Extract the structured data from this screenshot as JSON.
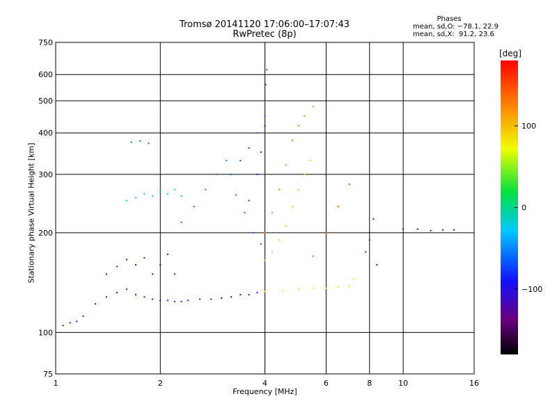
{
  "header": {
    "title_line1": "Tromsø 20141120 17:06:00–17:07:43",
    "title_line2": "RwPretec (8p)",
    "phases_heading": "Phases",
    "phases_o": "mean, sd,O: −78.1, 22.9",
    "phases_x": "mean, sd,X:  91.2, 23.6"
  },
  "colorbar": {
    "unit": "[deg]",
    "ticks": [
      {
        "label": "100",
        "value": 100
      },
      {
        "label": "0",
        "value": 0
      },
      {
        "label": "−100",
        "value": -100
      }
    ],
    "range": [
      -180,
      180
    ]
  },
  "colors": {
    "ochre_trace": "#e8a000",
    "yellow_trace": "#e6e600",
    "lime_trace": "#b8f000",
    "blue_trace": "#1c1cff",
    "cyan_trace": "#14b4e6",
    "navy_trace": "#1010b0"
  },
  "chart_data": {
    "type": "scatter",
    "title": "Tromsø 20141120 17:06:00–17:07:43",
    "subtitle": "RwPretec (8p)",
    "xlabel": "Frequency [MHz]",
    "ylabel": "Stationary phase Virtual Height [km]",
    "xscale": "log",
    "yscale": "log",
    "xlim": [
      1,
      16
    ],
    "ylim": [
      75,
      750
    ],
    "x_ticks": [
      {
        "label": "1",
        "value": 1
      },
      {
        "label": "2",
        "value": 2
      },
      {
        "label": "4",
        "value": 4
      },
      {
        "label": "6",
        "value": 6
      },
      {
        "label": "8",
        "value": 8
      },
      {
        "label": "10",
        "value": 10
      },
      {
        "label": "16",
        "value": 16
      }
    ],
    "y_ticks": [
      {
        "label": "75",
        "value": 75
      },
      {
        "label": "100",
        "value": 100
      },
      {
        "label": "200",
        "value": 200
      },
      {
        "label": "300",
        "value": 300
      },
      {
        "label": "400",
        "value": 400
      },
      {
        "label": "500",
        "value": 500
      },
      {
        "label": "600",
        "value": 600
      },
      {
        "label": "750",
        "value": 750
      }
    ],
    "grid": true,
    "series": [
      {
        "phase": -110,
        "x": [
          1.05,
          1.1,
          1.15,
          1.2,
          1.3,
          1.4,
          1.5,
          1.6,
          1.7,
          1.8,
          1.9,
          2.0,
          2.1,
          2.2,
          2.3,
          2.4,
          2.6,
          2.8,
          3.0,
          3.2,
          3.4,
          3.6,
          3.8,
          4.0
        ],
        "y": [
          105,
          107,
          108,
          112,
          122,
          128,
          132,
          135,
          130,
          128,
          126,
          125,
          125,
          124,
          124,
          125,
          126,
          126,
          127,
          128,
          130,
          130,
          132,
          133
        ]
      },
      {
        "phase": -95,
        "x": [
          1.4,
          1.5,
          1.6,
          1.7,
          1.8,
          1.9,
          2.0,
          2.1,
          2.2
        ],
        "y": [
          150,
          158,
          166,
          160,
          168,
          150,
          160,
          172,
          150
        ]
      },
      {
        "phase": -20,
        "x": [
          1.6,
          1.7,
          1.8,
          1.9,
          2.0,
          2.1,
          2.2,
          2.3
        ],
        "y": [
          250,
          255,
          262,
          258,
          266,
          262,
          270,
          258
        ]
      },
      {
        "phase": -60,
        "x": [
          1.65,
          1.75,
          1.85
        ],
        "y": [
          375,
          378,
          372
        ]
      },
      {
        "phase": -60,
        "x": [
          2.3,
          2.5,
          2.7,
          2.9,
          3.1,
          3.3,
          3.5,
          3.7,
          3.9
        ],
        "y": [
          215,
          240,
          270,
          300,
          330,
          260,
          230,
          200,
          185
        ]
      },
      {
        "phase": -70,
        "x": [
          3.2,
          3.4,
          3.6,
          3.8,
          4.0,
          4.05
        ],
        "y": [
          300,
          330,
          360,
          400,
          450,
          620
        ]
      },
      {
        "phase": -115,
        "x": [
          3.6,
          3.8,
          3.9,
          4.0,
          4.02
        ],
        "y": [
          250,
          300,
          350,
          420,
          560
        ]
      },
      {
        "phase": 95,
        "x": [
          4.0,
          4.2,
          4.4,
          4.6,
          4.8,
          5.0,
          5.2,
          5.4
        ],
        "y": [
          165,
          175,
          190,
          210,
          240,
          270,
          300,
          330
        ]
      },
      {
        "phase": 125,
        "x": [
          4.0,
          4.2,
          4.4,
          4.6,
          4.8,
          5.0,
          5.2,
          5.5
        ],
        "y": [
          200,
          230,
          270,
          320,
          380,
          420,
          450,
          480
        ]
      },
      {
        "phase": 80,
        "x": [
          4.0,
          4.5,
          5.0,
          5.5,
          6.0,
          6.5,
          7.0,
          7.2
        ],
        "y": [
          133,
          134,
          135,
          136,
          136,
          137,
          138,
          145
        ]
      },
      {
        "phase": 150,
        "x": [
          5.5,
          6.0,
          6.5,
          7.0
        ],
        "y": [
          170,
          200,
          240,
          280
        ]
      },
      {
        "phase": -120,
        "x": [
          7.8,
          8.0,
          8.2,
          8.4
        ],
        "y": [
          175,
          190,
          220,
          160
        ]
      },
      {
        "phase": -120,
        "x": [
          10.0,
          11.0,
          12.0,
          13.0,
          14.0
        ],
        "y": [
          205,
          205,
          203,
          204,
          204
        ]
      }
    ]
  }
}
